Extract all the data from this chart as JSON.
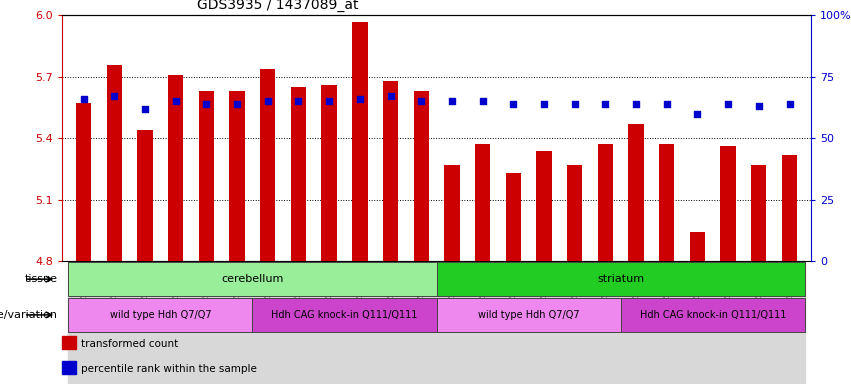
{
  "title": "GDS3935 / 1437089_at",
  "samples": [
    "GSM229450",
    "GSM229451",
    "GSM229452",
    "GSM229456",
    "GSM229457",
    "GSM229458",
    "GSM229453",
    "GSM229454",
    "GSM229455",
    "GSM229459",
    "GSM229460",
    "GSM229461",
    "GSM229429",
    "GSM229430",
    "GSM229431",
    "GSM229435",
    "GSM229436",
    "GSM229437",
    "GSM229432",
    "GSM229433",
    "GSM229434",
    "GSM229438",
    "GSM229439",
    "GSM229440"
  ],
  "bar_values": [
    5.57,
    5.76,
    5.44,
    5.71,
    5.63,
    5.63,
    5.74,
    5.65,
    5.66,
    5.97,
    5.68,
    5.63,
    5.27,
    5.37,
    5.23,
    5.34,
    5.27,
    5.37,
    5.47,
    5.37,
    4.94,
    5.36,
    5.27,
    5.32
  ],
  "percentile_values": [
    66,
    67,
    62,
    65,
    64,
    64,
    65,
    65,
    65,
    66,
    67,
    65,
    65,
    65,
    64,
    64,
    64,
    64,
    64,
    64,
    60,
    64,
    63,
    64
  ],
  "ymin": 4.8,
  "ymax": 6.0,
  "yticks_left": [
    4.8,
    5.1,
    5.4,
    5.7,
    6.0
  ],
  "right_yticks": [
    0,
    25,
    50,
    75,
    100
  ],
  "bar_color": "#cc0000",
  "percentile_color": "#0000cc",
  "tissue_groups": [
    {
      "label": "cerebellum",
      "start": 0,
      "end": 11,
      "color": "#99ee99"
    },
    {
      "label": "striatum",
      "start": 12,
      "end": 23,
      "color": "#22cc22"
    }
  ],
  "genotype_groups": [
    {
      "label": "wild type Hdh Q7/Q7",
      "start": 0,
      "end": 5,
      "color": "#ee88ee"
    },
    {
      "label": "Hdh CAG knock-in Q111/Q111",
      "start": 6,
      "end": 11,
      "color": "#cc44cc"
    },
    {
      "label": "wild type Hdh Q7/Q7",
      "start": 12,
      "end": 17,
      "color": "#ee88ee"
    },
    {
      "label": "Hdh CAG knock-in Q111/Q111",
      "start": 18,
      "end": 23,
      "color": "#cc44cc"
    }
  ],
  "legend_items": [
    {
      "label": "transformed count",
      "color": "#cc0000"
    },
    {
      "label": "percentile rank within the sample",
      "color": "#0000cc"
    }
  ],
  "title_fontsize": 10,
  "bar_left_color": "#cc0000",
  "bar_right_color": "#0000cc"
}
